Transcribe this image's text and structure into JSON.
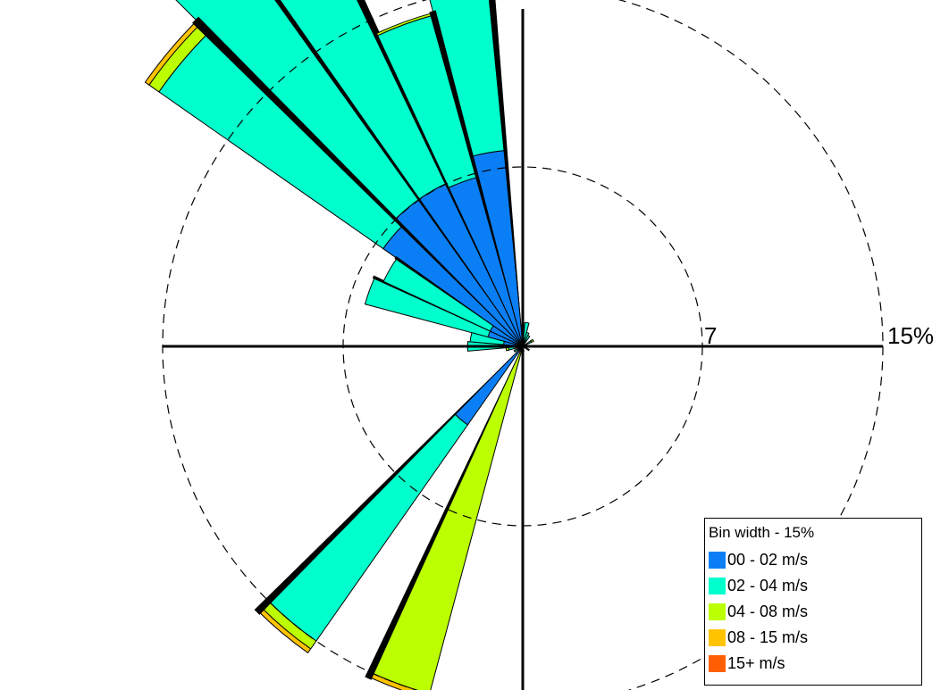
{
  "chart_data": {
    "type": "windrose",
    "radial_unit": "%",
    "ring_values": [
      7,
      15
    ],
    "ring_labels": [
      "7",
      "15%"
    ],
    "direction_convention": "compass, 0 = north (up), clockwise",
    "sector_width_deg": 10,
    "bins": [
      {
        "label": "00 - 02 m/s",
        "color": "#0a7ff5"
      },
      {
        "label": "02 - 04 m/s",
        "color": "#00ffcc"
      },
      {
        "label": "04 - 08 m/s",
        "color": "#bbff00"
      },
      {
        "label": "08 - 15 m/s",
        "color": "#ffc300"
      },
      {
        "label": "15+ m/s",
        "color": "#ff5f00"
      }
    ],
    "sectors": [
      {
        "dir": 350,
        "cumulative": [
          8.2,
          17.0,
          17.5,
          17.6,
          17.6
        ]
      },
      {
        "dir": 340,
        "cumulative": [
          7.3,
          14.3,
          14.4,
          14.4,
          14.4
        ]
      },
      {
        "dir": 330,
        "cumulative": [
          7.5,
          19.5,
          19.5,
          19.6,
          19.6
        ]
      },
      {
        "dir": 320,
        "cumulative": [
          7.5,
          21.0,
          22.0,
          22.2,
          22.2
        ]
      },
      {
        "dir": 310,
        "cumulative": [
          7.1,
          18.5,
          19.0,
          19.2,
          19.2
        ]
      },
      {
        "dir": 300,
        "cumulative": [
          1.5,
          6.4,
          6.4,
          6.4,
          6.4
        ]
      },
      {
        "dir": 290,
        "cumulative": [
          1.5,
          6.8,
          6.8,
          6.8,
          6.8
        ]
      },
      {
        "dir": 280,
        "cumulative": [
          0.8,
          2.2,
          2.2,
          2.2,
          2.2
        ]
      },
      {
        "dir": 270,
        "cumulative": [
          0.6,
          2.3,
          2.3,
          2.3,
          2.3
        ]
      },
      {
        "dir": 260,
        "cumulative": [
          0.3,
          0.6,
          0.7,
          0.7,
          0.7
        ]
      },
      {
        "dir": 240,
        "cumulative": [
          0.2,
          0.4,
          0.4,
          0.4,
          0.4
        ]
      },
      {
        "dir": 220,
        "cumulative": [
          4.0,
          15.0,
          15.4,
          15.6,
          15.6
        ]
      },
      {
        "dir": 200,
        "cumulative": [
          0.0,
          0.0,
          15.0,
          15.2,
          15.2
        ]
      },
      {
        "dir": 10,
        "cumulative": [
          0.3,
          1.0,
          1.0,
          1.0,
          1.0
        ]
      },
      {
        "dir": 20,
        "cumulative": [
          0.2,
          0.6,
          0.6,
          0.6,
          0.6
        ]
      },
      {
        "dir": 30,
        "cumulative": [
          0.1,
          0.5,
          0.5,
          0.5,
          0.5
        ]
      },
      {
        "dir": 60,
        "cumulative": [
          0.1,
          0.4,
          0.5,
          0.5,
          0.5
        ]
      },
      {
        "dir": 120,
        "cumulative": [
          0.1,
          0.3,
          0.3,
          0.3,
          0.3
        ]
      },
      {
        "dir": 170,
        "cumulative": [
          0.1,
          0.2,
          0.2,
          0.2,
          0.2
        ]
      }
    ]
  },
  "legend": {
    "title": "Bin width - 15%",
    "items": [
      "00 - 02 m/s",
      "02 - 04 m/s",
      "04 - 08 m/s",
      "08 - 15 m/s",
      "15+ m/s"
    ]
  }
}
